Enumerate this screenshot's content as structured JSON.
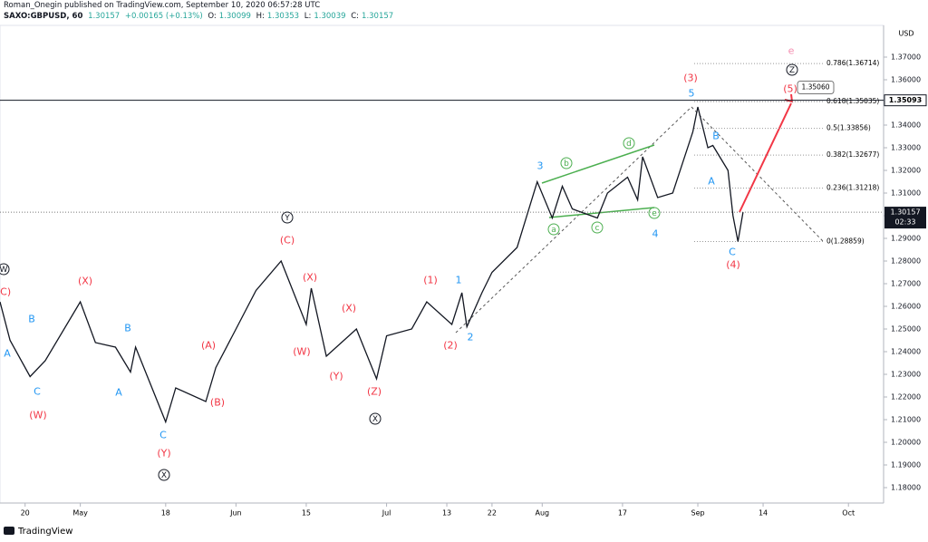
{
  "header": {
    "published": "Roman_Onegin published on TradingView.com, September 10, 2020 06:57:28 UTC",
    "symbol": "SAXO:GBPUSD, 60",
    "price": "1.30157",
    "change": "+0.00165 (+0.13%)",
    "open_label": "O:",
    "open": "1.30099",
    "high_label": "H:",
    "high": "1.30353",
    "low_label": "L:",
    "low": "1.30039",
    "close_label": "C:",
    "close": "1.30157"
  },
  "footer": {
    "brand": "TradingView"
  },
  "chart_data": {
    "type": "line",
    "currency": "USD",
    "x": [
      "04-15",
      "04-17",
      "04-21",
      "04-24",
      "05-01",
      "05-04",
      "05-08",
      "05-11",
      "05-12",
      "05-18",
      "05-20",
      "05-26",
      "05-28",
      "06-01",
      "06-05",
      "06-10",
      "06-15",
      "06-16",
      "06-19",
      "06-22",
      "06-25",
      "06-29",
      "07-01",
      "07-06",
      "07-09",
      "07-14",
      "07-16",
      "07-17",
      "07-20",
      "07-22",
      "07-27",
      "07-31",
      "08-03",
      "08-05",
      "08-07",
      "08-12",
      "08-14",
      "08-18",
      "08-20",
      "08-21",
      "08-24",
      "08-27",
      "08-31",
      "09-01",
      "09-03",
      "09-04",
      "09-07",
      "09-08",
      "09-09",
      "09-10"
    ],
    "series": [
      {
        "name": "GBPUSD",
        "color": "#131722",
        "values": [
          1.262,
          1.245,
          1.229,
          1.236,
          1.262,
          1.244,
          1.242,
          1.231,
          1.242,
          1.209,
          1.224,
          1.218,
          1.233,
          1.25,
          1.267,
          1.28,
          1.252,
          1.268,
          1.238,
          1.244,
          1.25,
          1.228,
          1.247,
          1.25,
          1.262,
          1.252,
          1.266,
          1.251,
          1.266,
          1.275,
          1.286,
          1.315,
          1.299,
          1.313,
          1.303,
          1.299,
          1.31,
          1.317,
          1.307,
          1.326,
          1.308,
          1.31,
          1.337,
          1.348,
          1.33,
          1.331,
          1.32,
          1.3,
          1.2886,
          1.30157
        ]
      }
    ],
    "xlim": [
      "04-15",
      "10-08"
    ],
    "xticks": [
      {
        "value": "04-20",
        "label": "20"
      },
      {
        "value": "05-01",
        "label": "May"
      },
      {
        "value": "05-18",
        "label": "18"
      },
      {
        "value": "06-01",
        "label": "Jun"
      },
      {
        "value": "06-15",
        "label": "15"
      },
      {
        "value": "07-01",
        "label": "Jul"
      },
      {
        "value": "07-13",
        "label": "13"
      },
      {
        "value": "07-22",
        "label": "22"
      },
      {
        "value": "08-01",
        "label": "Aug"
      },
      {
        "value": "08-17",
        "label": "17"
      },
      {
        "value": "09-01",
        "label": "Sep"
      },
      {
        "value": "09-14",
        "label": "14"
      },
      {
        "value": "10-01",
        "label": "Oct"
      }
    ],
    "ylim": [
      1.1732,
      1.384
    ],
    "yticks": [
      {
        "value": 1.18,
        "label": "1.18000"
      },
      {
        "value": 1.19,
        "label": "1.19000"
      },
      {
        "value": 1.2,
        "label": "1.20000"
      },
      {
        "value": 1.21,
        "label": "1.21000"
      },
      {
        "value": 1.22,
        "label": "1.22000"
      },
      {
        "value": 1.23,
        "label": "1.23000"
      },
      {
        "value": 1.24,
        "label": "1.24000"
      },
      {
        "value": 1.25,
        "label": "1.25000"
      },
      {
        "value": 1.26,
        "label": "1.26000"
      },
      {
        "value": 1.27,
        "label": "1.27000"
      },
      {
        "value": 1.28,
        "label": "1.28000"
      },
      {
        "value": 1.29,
        "label": "1.29000"
      },
      {
        "value": 1.3,
        "label": "1.30000"
      },
      {
        "value": 1.31,
        "label": "1.31000"
      },
      {
        "value": 1.32,
        "label": "1.32000"
      },
      {
        "value": 1.33,
        "label": "1.33000"
      },
      {
        "value": 1.34,
        "label": "1.34000"
      },
      {
        "value": 1.35,
        "label": "1.35000"
      },
      {
        "value": 1.36,
        "label": "1.36000"
      },
      {
        "value": 1.37,
        "label": "1.37000"
      }
    ],
    "last_price": {
      "value": 1.30157,
      "label": "1.30157",
      "countdown": "02:33"
    },
    "level_line": {
      "value": 1.35093,
      "label": "1.35093"
    },
    "target": {
      "value": 1.3506,
      "label": "1.35060"
    },
    "fib_levels": [
      {
        "value": 1.36714,
        "label": "0.786(1.36714)"
      },
      {
        "value": 1.35035,
        "label": "0.618(1.35035)"
      },
      {
        "value": 1.33856,
        "label": "0.5(1.33856)"
      },
      {
        "value": 1.32677,
        "label": "0.382(1.32677)"
      },
      {
        "value": 1.31218,
        "label": "0.236(1.31218)"
      },
      {
        "value": 1.28859,
        "label": "0(1.28859)"
      }
    ],
    "annotations": [
      "W",
      "(C)",
      "A",
      "B",
      "C",
      "(W)",
      "(X)",
      "B",
      "A",
      "C",
      "(Y)",
      "X",
      "(A)",
      "(B)",
      "(C)",
      "Y",
      "(X)",
      "(W)",
      "(X)",
      "(Y)",
      "(Z)",
      "X",
      "(1)",
      "1",
      "(2)",
      "2",
      "3",
      "a",
      "b",
      "c",
      "d",
      "e",
      "4",
      "(3)",
      "5",
      "B",
      "A",
      "C",
      "(4)",
      "(5)",
      "Z",
      "e"
    ]
  }
}
